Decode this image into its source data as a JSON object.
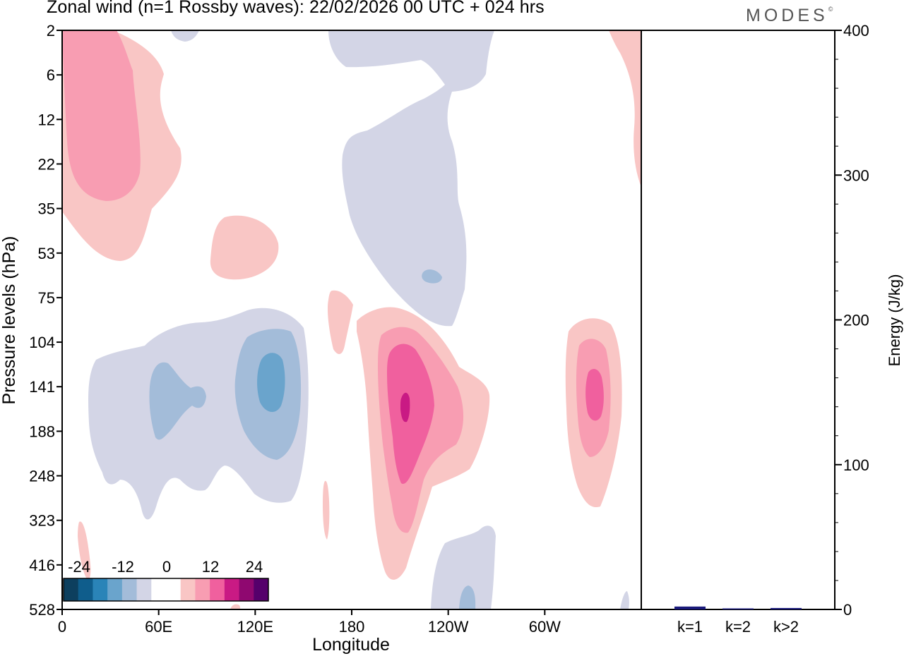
{
  "title": "Zonal wind (n=1 Rossby waves):  22/02/2026  00 UTC  + 024 hrs",
  "brand": {
    "text": "MODES",
    "mark": "©"
  },
  "chart_data": [
    {
      "type": "contour",
      "title": "Zonal wind (n=1 Rossby waves):  22/02/2026  00 UTC  + 024 hrs",
      "xlabel": "Longitude",
      "ylabel": "Pressure levels (hPa)",
      "x_ticks": [
        "0",
        "60E",
        "120E",
        "180",
        "120W",
        "60W"
      ],
      "x_tick_values": [
        0,
        60,
        120,
        180,
        240,
        300
      ],
      "xlim": [
        0,
        360
      ],
      "y_ticks": [
        "2",
        "6",
        "12",
        "22",
        "35",
        "53",
        "75",
        "104",
        "141",
        "188",
        "248",
        "323",
        "416",
        "528"
      ],
      "colorbar": {
        "labels": [
          "-24",
          "-12",
          "0",
          "12",
          "24"
        ],
        "colors": [
          "#0d3f5e",
          "#0f5d8c",
          "#2a84b8",
          "#6aa4cc",
          "#a3bcd9",
          "#d3d5e6",
          "#ffffff",
          "#ffffff",
          "#f9c6c5",
          "#f89db2",
          "#f0609e",
          "#c91a84",
          "#8f0870",
          "#55006b"
        ]
      },
      "colors": {
        "neg1": "#d3d5e6",
        "neg2": "#a3bcd9",
        "neg3": "#6aa4cc",
        "pos1": "#f9c6c5",
        "pos2": "#f89db2",
        "pos3": "#f0609e",
        "pos4": "#c91a84"
      }
    },
    {
      "type": "bar",
      "categories": [
        "k=1",
        "k=2",
        "k>2"
      ],
      "values": [
        2,
        0.5,
        1
      ],
      "ylabel": "Energy (J/kg)",
      "ylim": [
        0,
        400
      ],
      "y_ticks": [
        0,
        100,
        200,
        300,
        400
      ],
      "bar_color": "#1a1a7a"
    }
  ]
}
